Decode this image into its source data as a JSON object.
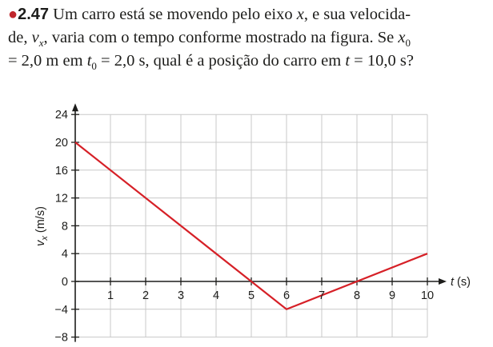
{
  "problem": {
    "number": "2.47",
    "line1_text": " Um carro está se movendo pelo eixo ",
    "x_var": "x",
    "line1_end": ", e sua velocida-",
    "line2_start": "de, ",
    "v_var": "v",
    "v_sub": "x",
    "line2_mid": ", varia com o tempo conforme mostrado na figura. Se ",
    "x0_var": "x",
    "x0_sub": "0",
    "line3_a": "= 2,0 m em ",
    "t0_var": "t",
    "t0_sub": "0",
    "line3_b": " = 2,0 s, qual é a posição do carro em ",
    "t_var": "t",
    "line3_c": " = 10,0 s?"
  },
  "chart_data": {
    "type": "line",
    "title": "",
    "xlabel": "t (s)",
    "ylabel": "vx (m/s)",
    "ylabel_var": "v",
    "ylabel_sub": "x",
    "ylabel_unit": " (m/s)",
    "xlim": [
      0,
      10
    ],
    "ylim": [
      -8,
      24
    ],
    "x_ticks": [
      1,
      2,
      3,
      4,
      5,
      6,
      7,
      8,
      9,
      10
    ],
    "y_ticks": [
      24,
      20,
      16,
      12,
      8,
      4,
      0,
      -4,
      -8
    ],
    "grid": true,
    "series": [
      {
        "x": [
          0,
          6,
          10
        ],
        "y": [
          20,
          -4,
          4
        ],
        "color": "#d62027"
      }
    ]
  }
}
